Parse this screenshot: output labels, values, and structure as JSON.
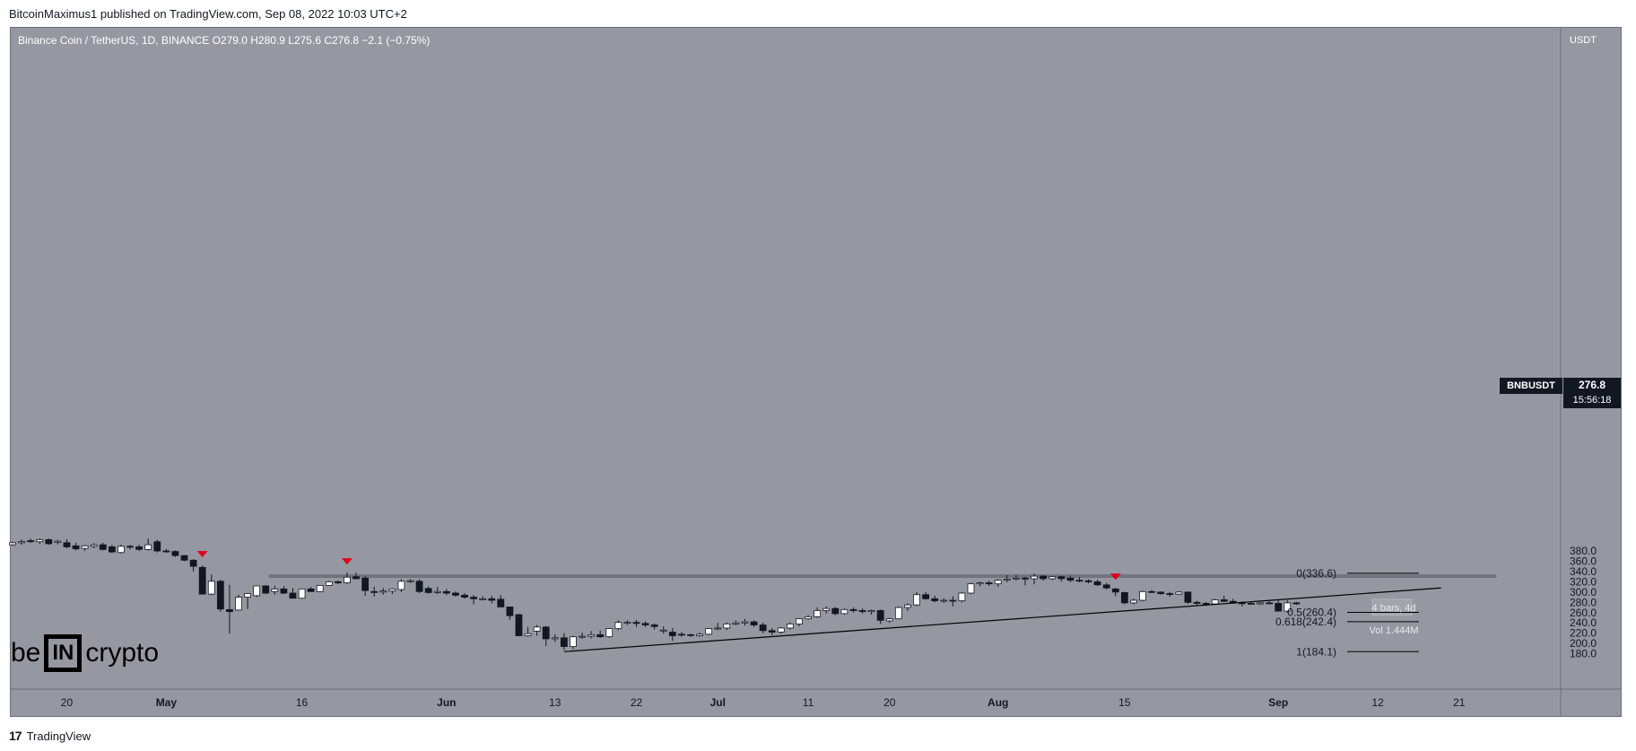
{
  "header": {
    "publisher_line": "BitcoinMaximus1 published on TradingView.com, Sep 08, 2022 10:03 UTC+2"
  },
  "legend": {
    "symbol": "Binance Coin / TetherUS, 1D, BINANCE",
    "ohlc": "O279.0  H280.9  L275.6  C276.8  −2.1 (−0.75%)"
  },
  "axis": {
    "currency": "USDT"
  },
  "ticker": {
    "symbol": "BNBUSDT",
    "price": "276.8",
    "countdown": "15:56:18"
  },
  "measure": {
    "bars": "4 bars, 4d",
    "vol": "Vol 1.444M"
  },
  "footer": {
    "logo": "17",
    "brand_text": "TradingView"
  },
  "brand": {
    "left": "be",
    "box": "IN",
    "right": "crypto"
  },
  "colors": {
    "background": "#9598a1",
    "bull": "#ffffff",
    "bear": "#131722",
    "marker": "#e0001b",
    "zone": "#6f737c"
  },
  "chart_data": {
    "type": "candlestick",
    "ylim": [
      172,
      408
    ],
    "y_ticks": [
      180,
      200,
      220,
      240,
      260,
      280,
      300,
      320,
      340,
      360,
      380
    ],
    "y_tick_labels": [
      "180.0",
      "200.0",
      "220.0",
      "240.0",
      "260.0",
      "280.0",
      "300.0",
      "320.0",
      "340.0",
      "360.0",
      "380.0"
    ],
    "x_ticks": [
      {
        "label": "20",
        "i": 6
      },
      {
        "label": "May",
        "i": 17
      },
      {
        "label": "16",
        "i": 32
      },
      {
        "label": "Jun",
        "i": 48
      },
      {
        "label": "13",
        "i": 60
      },
      {
        "label": "22",
        "i": 69
      },
      {
        "label": "Jul",
        "i": 78
      },
      {
        "label": "11",
        "i": 88
      },
      {
        "label": "20",
        "i": 97
      },
      {
        "label": "Aug",
        "i": 109
      },
      {
        "label": "15",
        "i": 123
      },
      {
        "label": "Sep",
        "i": 140
      },
      {
        "label": "12",
        "i": 151
      },
      {
        "label": "21",
        "i": 160
      }
    ],
    "candles": [
      {
        "o": 392,
        "h": 398,
        "l": 390,
        "c": 396
      },
      {
        "o": 396,
        "h": 402,
        "l": 392,
        "c": 398
      },
      {
        "o": 400,
        "h": 404,
        "l": 396,
        "c": 398
      },
      {
        "o": 398,
        "h": 404,
        "l": 394,
        "c": 402
      },
      {
        "o": 402,
        "h": 404,
        "l": 392,
        "c": 394
      },
      {
        "o": 397,
        "h": 402,
        "l": 393,
        "c": 399
      },
      {
        "o": 396,
        "h": 403,
        "l": 385,
        "c": 388
      },
      {
        "o": 390,
        "h": 396,
        "l": 381,
        "c": 384
      },
      {
        "o": 385,
        "h": 392,
        "l": 380,
        "c": 390
      },
      {
        "o": 389,
        "h": 395,
        "l": 385,
        "c": 392
      },
      {
        "o": 392,
        "h": 396,
        "l": 381,
        "c": 383
      },
      {
        "o": 388,
        "h": 392,
        "l": 376,
        "c": 378
      },
      {
        "o": 377,
        "h": 392,
        "l": 375,
        "c": 389
      },
      {
        "o": 389,
        "h": 392,
        "l": 383,
        "c": 388
      },
      {
        "o": 388,
        "h": 392,
        "l": 380,
        "c": 383
      },
      {
        "o": 383,
        "h": 404,
        "l": 381,
        "c": 392
      },
      {
        "o": 398,
        "h": 402,
        "l": 377,
        "c": 380
      },
      {
        "o": 380,
        "h": 384,
        "l": 376,
        "c": 379
      },
      {
        "o": 379,
        "h": 381,
        "l": 368,
        "c": 371
      },
      {
        "o": 371,
        "h": 372,
        "l": 360,
        "c": 362
      },
      {
        "o": 362,
        "h": 364,
        "l": 340,
        "c": 350
      },
      {
        "o": 348,
        "h": 352,
        "l": 298,
        "c": 296
      },
      {
        "o": 296,
        "h": 334,
        "l": 294,
        "c": 321
      },
      {
        "o": 321,
        "h": 324,
        "l": 262,
        "c": 267
      },
      {
        "o": 266,
        "h": 314,
        "l": 219,
        "c": 262
      },
      {
        "o": 265,
        "h": 295,
        "l": 264,
        "c": 290
      },
      {
        "o": 290,
        "h": 298,
        "l": 267,
        "c": 297
      },
      {
        "o": 293,
        "h": 313,
        "l": 290,
        "c": 312
      },
      {
        "o": 312,
        "h": 313,
        "l": 296,
        "c": 298
      },
      {
        "o": 301,
        "h": 312,
        "l": 295,
        "c": 306
      },
      {
        "o": 306,
        "h": 312,
        "l": 296,
        "c": 298
      },
      {
        "o": 298,
        "h": 308,
        "l": 288,
        "c": 288
      },
      {
        "o": 288,
        "h": 307,
        "l": 287,
        "c": 306
      },
      {
        "o": 306,
        "h": 310,
        "l": 300,
        "c": 301
      },
      {
        "o": 301,
        "h": 314,
        "l": 300,
        "c": 313
      },
      {
        "o": 313,
        "h": 322,
        "l": 312,
        "c": 320
      },
      {
        "o": 320,
        "h": 323,
        "l": 315,
        "c": 318
      },
      {
        "o": 318,
        "h": 338,
        "l": 316,
        "c": 329
      },
      {
        "o": 330,
        "h": 338,
        "l": 325,
        "c": 326
      },
      {
        "o": 327,
        "h": 331,
        "l": 293,
        "c": 303
      },
      {
        "o": 301,
        "h": 310,
        "l": 291,
        "c": 300
      },
      {
        "o": 300,
        "h": 308,
        "l": 295,
        "c": 302
      },
      {
        "o": 302,
        "h": 307,
        "l": 296,
        "c": 306
      },
      {
        "o": 305,
        "h": 325,
        "l": 300,
        "c": 321
      },
      {
        "o": 321,
        "h": 325,
        "l": 318,
        "c": 322
      },
      {
        "o": 321,
        "h": 325,
        "l": 298,
        "c": 301
      },
      {
        "o": 307,
        "h": 311,
        "l": 297,
        "c": 299
      },
      {
        "o": 299,
        "h": 310,
        "l": 296,
        "c": 301
      },
      {
        "o": 301,
        "h": 306,
        "l": 294,
        "c": 298
      },
      {
        "o": 298,
        "h": 301,
        "l": 291,
        "c": 294
      },
      {
        "o": 294,
        "h": 298,
        "l": 287,
        "c": 290
      },
      {
        "o": 290,
        "h": 294,
        "l": 276,
        "c": 287
      },
      {
        "o": 287,
        "h": 292,
        "l": 284,
        "c": 287
      },
      {
        "o": 287,
        "h": 293,
        "l": 278,
        "c": 284
      },
      {
        "o": 286,
        "h": 294,
        "l": 273,
        "c": 271
      },
      {
        "o": 271,
        "h": 272,
        "l": 246,
        "c": 254
      },
      {
        "o": 256,
        "h": 258,
        "l": 215,
        "c": 215
      },
      {
        "o": 215,
        "h": 232,
        "l": 213,
        "c": 219
      },
      {
        "o": 224,
        "h": 236,
        "l": 215,
        "c": 232
      },
      {
        "o": 232,
        "h": 234,
        "l": 195,
        "c": 209
      },
      {
        "o": 209,
        "h": 218,
        "l": 203,
        "c": 211
      },
      {
        "o": 211,
        "h": 220,
        "l": 187,
        "c": 194
      },
      {
        "o": 194,
        "h": 215,
        "l": 189,
        "c": 213
      },
      {
        "o": 213,
        "h": 221,
        "l": 209,
        "c": 214
      },
      {
        "o": 214,
        "h": 224,
        "l": 210,
        "c": 217
      },
      {
        "o": 217,
        "h": 225,
        "l": 211,
        "c": 213
      },
      {
        "o": 213,
        "h": 230,
        "l": 211,
        "c": 229
      },
      {
        "o": 229,
        "h": 245,
        "l": 226,
        "c": 241
      },
      {
        "o": 241,
        "h": 245,
        "l": 236,
        "c": 241
      },
      {
        "o": 241,
        "h": 246,
        "l": 232,
        "c": 239
      },
      {
        "o": 239,
        "h": 243,
        "l": 232,
        "c": 236
      },
      {
        "o": 236,
        "h": 239,
        "l": 227,
        "c": 233
      },
      {
        "o": 225,
        "h": 233,
        "l": 219,
        "c": 226
      },
      {
        "o": 222,
        "h": 230,
        "l": 205,
        "c": 215
      },
      {
        "o": 218,
        "h": 222,
        "l": 213,
        "c": 217
      },
      {
        "o": 217,
        "h": 219,
        "l": 213,
        "c": 216
      },
      {
        "o": 215,
        "h": 221,
        "l": 213,
        "c": 218
      },
      {
        "o": 218,
        "h": 230,
        "l": 216,
        "c": 229
      },
      {
        "o": 229,
        "h": 240,
        "l": 226,
        "c": 230
      },
      {
        "o": 230,
        "h": 241,
        "l": 226,
        "c": 238
      },
      {
        "o": 238,
        "h": 245,
        "l": 236,
        "c": 240
      },
      {
        "o": 240,
        "h": 248,
        "l": 235,
        "c": 242
      },
      {
        "o": 242,
        "h": 245,
        "l": 232,
        "c": 236
      },
      {
        "o": 236,
        "h": 241,
        "l": 220,
        "c": 225
      },
      {
        "o": 225,
        "h": 230,
        "l": 216,
        "c": 222
      },
      {
        "o": 222,
        "h": 232,
        "l": 219,
        "c": 230
      },
      {
        "o": 230,
        "h": 241,
        "l": 227,
        "c": 238
      },
      {
        "o": 238,
        "h": 249,
        "l": 233,
        "c": 248
      },
      {
        "o": 248,
        "h": 255,
        "l": 246,
        "c": 252
      },
      {
        "o": 252,
        "h": 270,
        "l": 250,
        "c": 264
      },
      {
        "o": 264,
        "h": 272,
        "l": 258,
        "c": 268
      },
      {
        "o": 268,
        "h": 271,
        "l": 255,
        "c": 258
      },
      {
        "o": 258,
        "h": 268,
        "l": 256,
        "c": 266
      },
      {
        "o": 266,
        "h": 270,
        "l": 260,
        "c": 264
      },
      {
        "o": 264,
        "h": 268,
        "l": 258,
        "c": 262
      },
      {
        "o": 262,
        "h": 266,
        "l": 256,
        "c": 264
      },
      {
        "o": 264,
        "h": 266,
        "l": 238,
        "c": 245
      },
      {
        "o": 244,
        "h": 250,
        "l": 240,
        "c": 248
      },
      {
        "o": 248,
        "h": 272,
        "l": 247,
        "c": 270
      },
      {
        "o": 270,
        "h": 278,
        "l": 263,
        "c": 275
      },
      {
        "o": 275,
        "h": 300,
        "l": 273,
        "c": 295
      },
      {
        "o": 295,
        "h": 300,
        "l": 285,
        "c": 287
      },
      {
        "o": 287,
        "h": 293,
        "l": 280,
        "c": 283
      },
      {
        "o": 283,
        "h": 288,
        "l": 279,
        "c": 284
      },
      {
        "o": 284,
        "h": 292,
        "l": 272,
        "c": 283
      },
      {
        "o": 283,
        "h": 300,
        "l": 280,
        "c": 298
      },
      {
        "o": 298,
        "h": 318,
        "l": 296,
        "c": 316
      },
      {
        "o": 316,
        "h": 320,
        "l": 311,
        "c": 318
      },
      {
        "o": 318,
        "h": 322,
        "l": 312,
        "c": 316
      },
      {
        "o": 316,
        "h": 325,
        "l": 310,
        "c": 323
      },
      {
        "o": 323,
        "h": 333,
        "l": 319,
        "c": 325
      },
      {
        "o": 325,
        "h": 333,
        "l": 322,
        "c": 327
      },
      {
        "o": 327,
        "h": 330,
        "l": 313,
        "c": 326
      },
      {
        "o": 326,
        "h": 336,
        "l": 315,
        "c": 331
      },
      {
        "o": 331,
        "h": 333,
        "l": 322,
        "c": 326
      },
      {
        "o": 326,
        "h": 330,
        "l": 323,
        "c": 330
      },
      {
        "o": 330,
        "h": 332,
        "l": 320,
        "c": 326
      },
      {
        "o": 327,
        "h": 332,
        "l": 319,
        "c": 323
      },
      {
        "o": 323,
        "h": 329,
        "l": 319,
        "c": 322
      },
      {
        "o": 322,
        "h": 325,
        "l": 317,
        "c": 320
      },
      {
        "o": 320,
        "h": 324,
        "l": 312,
        "c": 314
      },
      {
        "o": 314,
        "h": 318,
        "l": 305,
        "c": 308
      },
      {
        "o": 306,
        "h": 308,
        "l": 292,
        "c": 300
      },
      {
        "o": 299,
        "h": 301,
        "l": 276,
        "c": 279
      },
      {
        "o": 279,
        "h": 287,
        "l": 276,
        "c": 284
      },
      {
        "o": 284,
        "h": 303,
        "l": 282,
        "c": 301
      },
      {
        "o": 301,
        "h": 304,
        "l": 298,
        "c": 300
      },
      {
        "o": 300,
        "h": 301,
        "l": 295,
        "c": 297
      },
      {
        "o": 297,
        "h": 300,
        "l": 291,
        "c": 296
      },
      {
        "o": 296,
        "h": 302,
        "l": 295,
        "c": 300
      },
      {
        "o": 300,
        "h": 301,
        "l": 277,
        "c": 280
      },
      {
        "o": 280,
        "h": 283,
        "l": 274,
        "c": 278
      },
      {
        "o": 278,
        "h": 281,
        "l": 273,
        "c": 277
      },
      {
        "o": 277,
        "h": 287,
        "l": 276,
        "c": 285
      },
      {
        "o": 285,
        "h": 293,
        "l": 281,
        "c": 282
      },
      {
        "o": 282,
        "h": 287,
        "l": 277,
        "c": 279
      },
      {
        "o": 279,
        "h": 282,
        "l": 272,
        "c": 278
      },
      {
        "o": 278,
        "h": 281,
        "l": 276,
        "c": 277
      },
      {
        "o": 277,
        "h": 280,
        "l": 275,
        "c": 279
      },
      {
        "o": 279,
        "h": 283,
        "l": 276,
        "c": 278
      },
      {
        "o": 278,
        "h": 285,
        "l": 262,
        "c": 263
      },
      {
        "o": 263,
        "h": 284,
        "l": 260,
        "c": 279
      },
      {
        "o": 279,
        "h": 281,
        "l": 275,
        "c": 277
      }
    ],
    "resistance_zone": [
      328.5,
      333.5
    ],
    "markers": [
      21,
      37,
      122
    ],
    "trendline": {
      "from": {
        "i": 61,
        "y": 184
      },
      "to": {
        "i": 158,
        "y": 308
      }
    },
    "fib_levels": [
      {
        "label": "0(336.6)",
        "value": 336.6
      },
      {
        "label": "0.5(260.4)",
        "value": 260.4
      },
      {
        "label": "0.618(242.4)",
        "value": 242.4
      },
      {
        "label": "1(184.1)",
        "value": 184.1
      }
    ]
  }
}
